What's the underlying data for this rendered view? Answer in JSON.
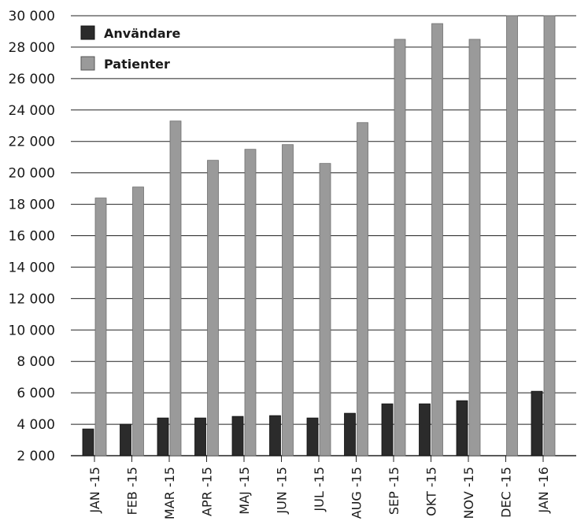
{
  "chart_data": {
    "type": "bar",
    "categories": [
      "JAN -15",
      "FEB -15",
      "MAR -15",
      "APR -15",
      "MAJ -15",
      "JUN -15",
      "JUL -15",
      "AUG -15",
      "SEP -15",
      "OKT -15",
      "NOV -15",
      "DEC -15",
      "JAN -16"
    ],
    "series": [
      {
        "name": "Användare",
        "color": "#2b2b2b",
        "values": [
          3700,
          4000,
          4400,
          4400,
          4500,
          4550,
          4400,
          4700,
          5300,
          5300,
          5500,
          2000,
          6100
        ]
      },
      {
        "name": "Patienter",
        "color": "#9a9a9a",
        "values": [
          18400,
          19100,
          23300,
          20800,
          21500,
          21800,
          20600,
          23200,
          28500,
          29500,
          28500,
          30000,
          30000
        ]
      }
    ],
    "yticks": [
      "2 000",
      "4 000",
      "6 000",
      "8 000",
      "10 000",
      "12 000",
      "14 000",
      "16 000",
      "18 000",
      "20 000",
      "22 000",
      "24 000",
      "26 000",
      "28 000",
      "30 000"
    ],
    "ylim": [
      2000,
      30000
    ],
    "grid": true,
    "legend_position": "top-left",
    "title": "",
    "xlabel": "",
    "ylabel": ""
  }
}
